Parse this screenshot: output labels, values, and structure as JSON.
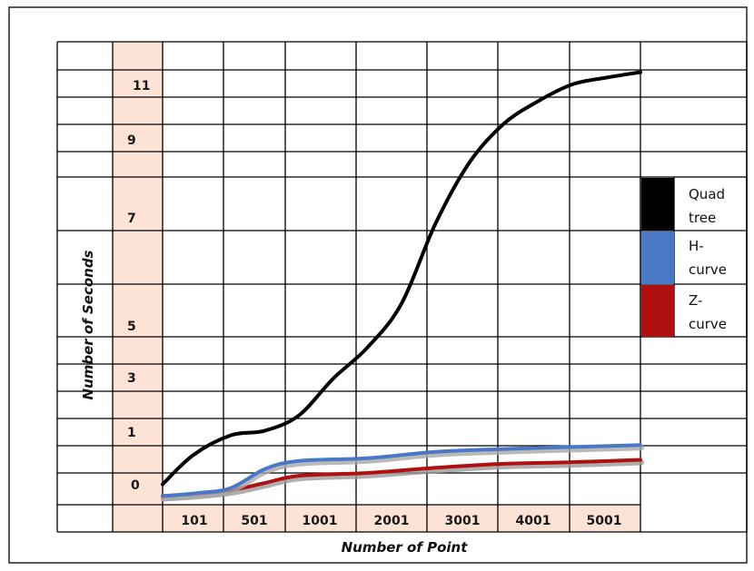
{
  "chart_data": {
    "type": "line",
    "title": "",
    "xlabel": "Number of Point",
    "ylabel": "Number of  Seconds",
    "x_tick_labels": [
      "101",
      "501",
      "1001",
      "2001",
      "3001",
      "4001",
      "5001"
    ],
    "y_tick_labels": [
      "11",
      "9",
      "7",
      "5",
      "3",
      "1",
      "0"
    ],
    "grid": true,
    "legend": {
      "placement": "right"
    },
    "series": [
      {
        "name": "Quad tree",
        "legend_lines": [
          "Quad",
          "tree"
        ],
        "color": "#000000",
        "x": [
          0,
          0.45,
          1,
          1.5,
          2,
          2.5,
          3,
          3.5,
          4,
          4.5,
          5,
          5.5,
          6,
          6.5,
          7
        ],
        "y": [
          -0.1,
          0.7,
          1.25,
          1.4,
          1.9,
          3.1,
          4.2,
          5.4,
          6.9,
          8.5,
          9.7,
          10.5,
          11.2,
          11.7,
          12.1
        ]
      },
      {
        "name": "H-curve",
        "legend_lines": [
          "H-",
          "curve"
        ],
        "color": "#4a78c9",
        "x": [
          0,
          0.5,
          1,
          1.5,
          2,
          3,
          4,
          5,
          6,
          7
        ],
        "y": [
          -0.9,
          -0.7,
          -0.35,
          0.35,
          0.55,
          0.62,
          0.78,
          0.85,
          0.9,
          0.95
        ]
      },
      {
        "name": "Z-curve",
        "legend_lines": [
          "Z-",
          "curve"
        ],
        "color": "#b01010",
        "x": [
          0,
          0.5,
          1,
          1.5,
          2,
          3,
          4,
          5,
          6,
          7
        ],
        "y": [
          -0.9,
          -0.75,
          -0.5,
          0.0,
          0.18,
          0.25,
          0.38,
          0.48,
          0.52,
          0.58
        ]
      }
    ]
  }
}
